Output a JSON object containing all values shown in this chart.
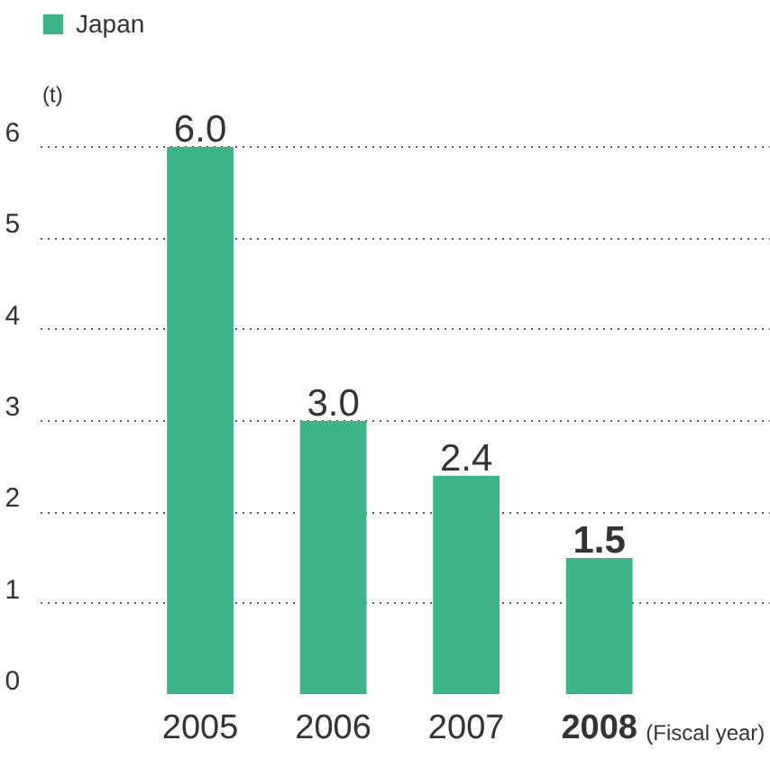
{
  "chart_data": {
    "type": "bar",
    "categories": [
      "2005",
      "2006",
      "2007",
      "2008"
    ],
    "series": [
      {
        "name": "Japan",
        "color": "#3db388",
        "values": [
          6.0,
          3.0,
          2.4,
          1.5
        ]
      }
    ],
    "value_labels": [
      "6.0",
      "3.0",
      "2.4",
      "1.5"
    ],
    "ylabel": "(t)",
    "xlabel": "(Fiscal year)",
    "ylim": [
      0,
      7.5
    ],
    "yticks": [
      0,
      1,
      2,
      3,
      4,
      5,
      6
    ],
    "grid": "y",
    "legend": "top left"
  }
}
